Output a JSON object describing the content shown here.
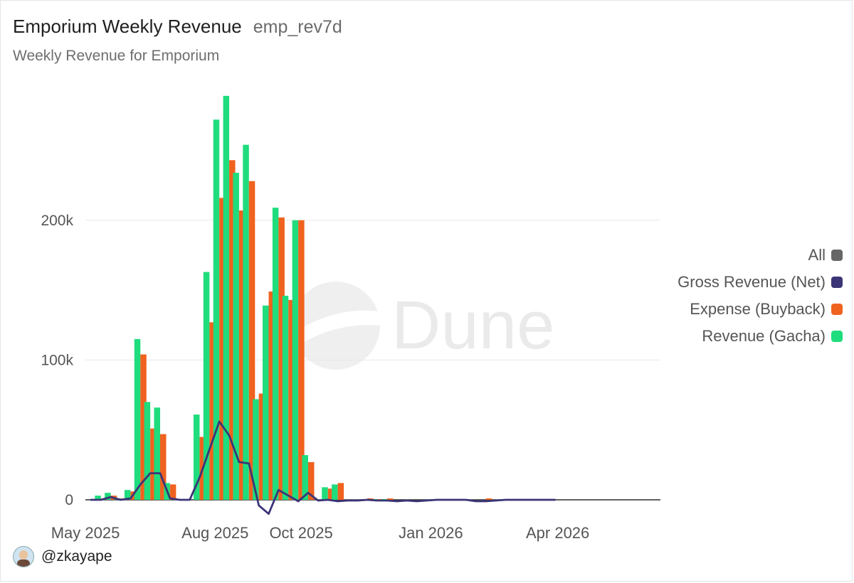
{
  "header": {
    "title": "Emporium Weekly Revenue",
    "query_id": "emp_rev7d",
    "subtitle": "Weekly Revenue for Emporium"
  },
  "legend": {
    "items": [
      {
        "label": "All",
        "color": "#666666"
      },
      {
        "label": "Gross Revenue (Net)",
        "color": "#3b3577"
      },
      {
        "label": "Expense (Buyback)",
        "color": "#f0621f"
      },
      {
        "label": "Revenue (Gacha)",
        "color": "#1fdc7d"
      }
    ]
  },
  "watermark": {
    "text": "Dune"
  },
  "credit": {
    "handle": "@zkayape"
  },
  "chart_data": {
    "type": "bar",
    "title": "Emporium Weekly Revenue",
    "subtitle": "Weekly Revenue for Emporium",
    "x": [
      "2025-05-05",
      "2025-05-12",
      "2025-05-19",
      "2025-05-26",
      "2025-06-02",
      "2025-06-09",
      "2025-06-16",
      "2025-06-23",
      "2025-06-30",
      "2025-07-07",
      "2025-07-14",
      "2025-07-21",
      "2025-07-28",
      "2025-08-04",
      "2025-08-11",
      "2025-08-18",
      "2025-08-25",
      "2025-09-01",
      "2025-09-08",
      "2025-09-15",
      "2025-09-22",
      "2025-09-29",
      "2025-10-06",
      "2025-10-13",
      "2025-10-20",
      "2025-10-27",
      "2025-11-03",
      "2025-11-10",
      "2025-11-17",
      "2025-11-24",
      "2025-12-01",
      "2025-12-08",
      "2025-12-15",
      "2025-12-22",
      "2025-12-29",
      "2026-01-05",
      "2026-01-12",
      "2026-01-19",
      "2026-01-26",
      "2026-02-02",
      "2026-02-09",
      "2026-02-16",
      "2026-02-23",
      "2026-03-02",
      "2026-03-09",
      "2026-03-16",
      "2026-03-23",
      "2026-03-30"
    ],
    "series": [
      {
        "name": "Revenue (Gacha)",
        "type": "bar",
        "values": [
          0,
          3000,
          5000,
          1000,
          7000,
          115000,
          70000,
          66000,
          12000,
          0,
          0,
          61000,
          163000,
          272000,
          289000,
          234000,
          254000,
          72000,
          139000,
          209000,
          146000,
          200000,
          32000,
          0,
          9000,
          11000,
          0,
          0,
          500,
          300,
          300,
          0,
          0,
          0,
          0,
          0,
          0,
          0,
          0,
          0,
          0,
          0,
          0,
          0,
          0,
          0,
          0,
          0
        ]
      },
      {
        "name": "Expense (Buyback)",
        "type": "bar",
        "values": [
          0,
          1000,
          3000,
          1000,
          6000,
          104000,
          51000,
          47000,
          11000,
          0,
          0,
          45000,
          127000,
          216000,
          243000,
          207000,
          228000,
          76000,
          149000,
          202000,
          143000,
          200000,
          27000,
          0,
          8000,
          12000,
          0,
          0,
          1000,
          500,
          1000,
          0,
          0,
          0,
          0,
          0,
          0,
          0,
          0,
          0,
          1000,
          0,
          0,
          0,
          0,
          0,
          0,
          0
        ]
      },
      {
        "name": "Gross Revenue (Net)",
        "type": "line",
        "values": [
          0,
          0,
          2000,
          0,
          1000,
          11000,
          19000,
          19000,
          1000,
          0,
          0,
          16000,
          36000,
          56000,
          46000,
          27000,
          26000,
          -4000,
          -10000,
          7000,
          3000,
          -1000,
          5000,
          -500,
          0,
          -1000,
          -500,
          -500,
          0,
          -500,
          -500,
          -1000,
          -500,
          -1000,
          -500,
          0,
          0,
          0,
          0,
          -1000,
          -1000,
          -500,
          0,
          0,
          0,
          0,
          0,
          0
        ]
      }
    ],
    "y_ticks": [
      "0",
      "100k",
      "200k"
    ],
    "x_ticks": [
      "May 2025",
      "Aug 2025",
      "Oct 2025",
      "Jan 2026",
      "Apr 2026"
    ],
    "ylim": [
      -12000,
      300000
    ],
    "grid": true,
    "legend_position": "right"
  }
}
